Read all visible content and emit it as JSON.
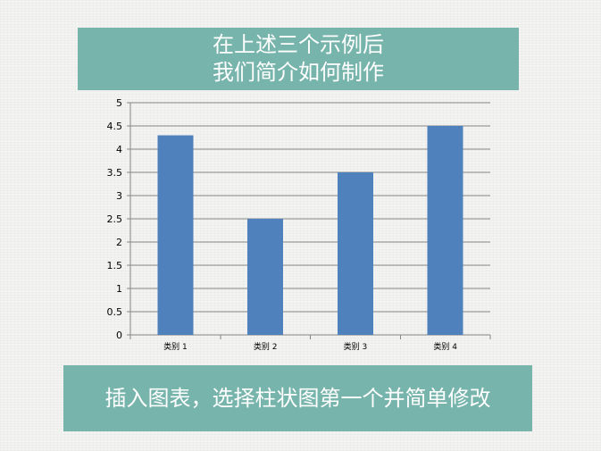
{
  "header": {
    "line1": "在上述三个示例后",
    "line2": "我们简介如何制作"
  },
  "footer": {
    "text": "插入图表，选择柱状图第一个并简单修改"
  },
  "chart_data": {
    "type": "bar",
    "categories": [
      "类别 1",
      "类别 2",
      "类别 3",
      "类别 4"
    ],
    "values": [
      4.3,
      2.5,
      3.5,
      4.5
    ],
    "yticks": [
      "0",
      "0.5",
      "1",
      "1.5",
      "2",
      "2.5",
      "3",
      "3.5",
      "4",
      "4.5",
      "5"
    ],
    "ylim": [
      0,
      5
    ],
    "grid": true,
    "legend": "none",
    "bar_color": "#4f81bd",
    "gridline_color": "#868686"
  },
  "colors": {
    "banner": "#77b4ab",
    "banner_text": "#ffffff"
  }
}
